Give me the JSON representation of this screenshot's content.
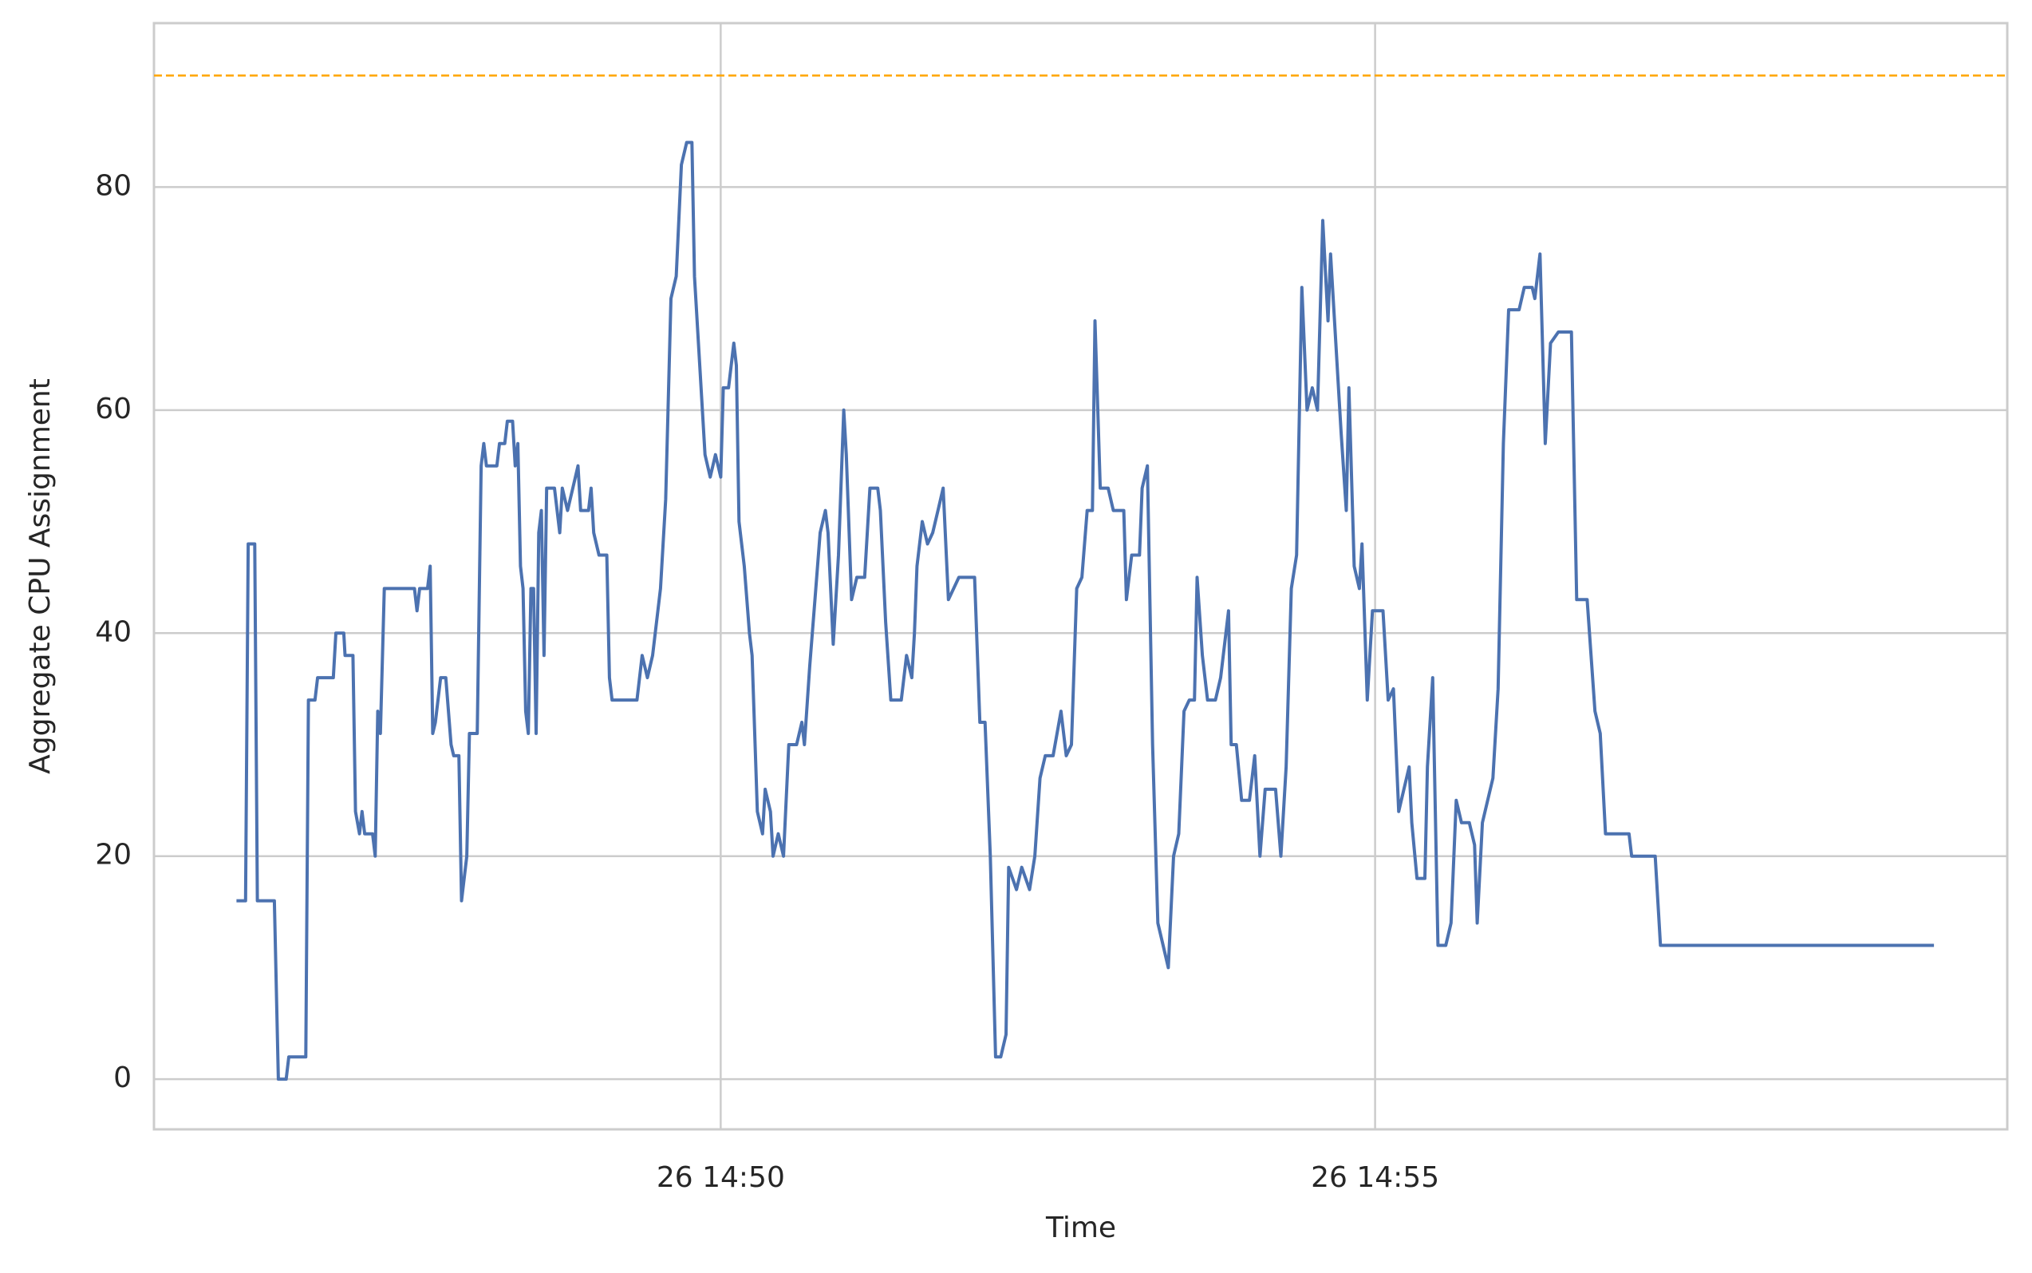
{
  "chart_data": {
    "type": "line",
    "xlabel": "Time",
    "ylabel": "Aggregate CPU Assignment",
    "x": [
      46.3,
      46.37,
      46.39,
      46.44,
      46.46,
      46.59,
      46.62,
      46.68,
      46.7,
      46.83,
      46.85,
      46.9,
      46.92,
      47.04,
      47.06,
      47.12,
      47.13,
      47.19,
      47.21,
      47.24,
      47.26,
      47.28,
      47.34,
      47.36,
      47.38,
      47.4,
      47.43,
      47.66,
      47.68,
      47.7,
      47.76,
      47.78,
      47.8,
      47.82,
      47.86,
      47.9,
      47.94,
      47.96,
      48.0,
      48.02,
      48.06,
      48.08,
      48.14,
      48.17,
      48.19,
      48.21,
      48.29,
      48.31,
      48.35,
      48.37,
      48.41,
      48.43,
      48.45,
      48.47,
      48.49,
      48.51,
      48.53,
      48.55,
      48.57,
      48.59,
      48.61,
      48.63,
      48.65,
      48.67,
      48.73,
      48.77,
      48.79,
      48.83,
      48.87,
      48.91,
      48.93,
      48.99,
      49.01,
      49.03,
      49.07,
      49.13,
      49.15,
      49.17,
      49.36,
      49.4,
      49.44,
      49.48,
      49.54,
      49.58,
      49.62,
      49.66,
      49.7,
      49.74,
      49.78,
      49.8,
      49.84,
      49.88,
      49.92,
      49.96,
      50.0,
      50.02,
      50.06,
      50.1,
      50.12,
      50.14,
      50.18,
      50.22,
      50.24,
      50.28,
      50.32,
      50.34,
      50.38,
      50.4,
      50.44,
      50.48,
      50.52,
      50.58,
      50.62,
      50.64,
      50.68,
      50.72,
      50.76,
      50.8,
      50.82,
      50.86,
      50.9,
      50.94,
      50.96,
      51.0,
      51.04,
      51.1,
      51.14,
      51.2,
      51.22,
      51.26,
      51.3,
      51.38,
      51.42,
      51.46,
      51.48,
      51.5,
      51.54,
      51.58,
      51.62,
      51.66,
      51.7,
      51.74,
      51.82,
      51.94,
      51.98,
      52.02,
      52.06,
      52.1,
      52.14,
      52.18,
      52.2,
      52.26,
      52.3,
      52.36,
      52.4,
      52.44,
      52.48,
      52.54,
      52.6,
      52.64,
      52.68,
      52.72,
      52.76,
      52.8,
      52.84,
      52.86,
      52.9,
      52.96,
      53.0,
      53.08,
      53.1,
      53.14,
      53.2,
      53.22,
      53.26,
      53.3,
      53.34,
      53.38,
      53.42,
      53.46,
      53.5,
      53.54,
      53.58,
      53.62,
      53.64,
      53.68,
      53.72,
      53.78,
      53.82,
      53.88,
      53.9,
      53.94,
      53.98,
      54.04,
      54.08,
      54.12,
      54.16,
      54.24,
      54.28,
      54.32,
      54.36,
      54.4,
      54.44,
      54.48,
      54.52,
      54.56,
      54.6,
      54.64,
      54.66,
      54.7,
      54.74,
      54.78,
      54.8,
      54.84,
      54.88,
      54.9,
      54.94,
      54.98,
      55.06,
      55.1,
      55.14,
      55.18,
      55.22,
      55.26,
      55.28,
      55.32,
      55.38,
      55.4,
      55.44,
      55.48,
      55.54,
      55.58,
      55.62,
      55.66,
      55.72,
      55.76,
      55.78,
      55.82,
      55.86,
      55.9,
      55.94,
      55.98,
      56.02,
      56.1,
      56.14,
      56.2,
      56.22,
      56.26,
      56.3,
      56.34,
      56.4,
      56.5,
      56.54,
      56.62,
      56.68,
      56.72,
      56.76,
      56.94,
      56.96,
      57.14,
      57.18,
      59.27
    ],
    "values": [
      16,
      16,
      48,
      48,
      16,
      16,
      0,
      0,
      2,
      2,
      34,
      34,
      36,
      36,
      40,
      40,
      38,
      38,
      24,
      22,
      24,
      22,
      22,
      20,
      33,
      31,
      44,
      44,
      42,
      44,
      44,
      46,
      31,
      32,
      36,
      36,
      30,
      29,
      29,
      16,
      20,
      31,
      31,
      55,
      57,
      55,
      55,
      57,
      57,
      59,
      59,
      55,
      57,
      46,
      44,
      33,
      31,
      44,
      44,
      31,
      49,
      51,
      38,
      53,
      53,
      49,
      53,
      51,
      53,
      55,
      51,
      51,
      53,
      49,
      47,
      47,
      36,
      34,
      34,
      38,
      36,
      38,
      44,
      52,
      70,
      72,
      82,
      84,
      84,
      72,
      64,
      56,
      54,
      56,
      54,
      62,
      62,
      66,
      64,
      50,
      46,
      40,
      38,
      24,
      22,
      26,
      24,
      20,
      22,
      20,
      30,
      30,
      32,
      30,
      37,
      43,
      49,
      51,
      49,
      39,
      47,
      60,
      56,
      43,
      45,
      45,
      53,
      53,
      51,
      41,
      34,
      34,
      38,
      36,
      40,
      46,
      50,
      48,
      49,
      51,
      53,
      43,
      45,
      45,
      32,
      32,
      20,
      2,
      2,
      4,
      19,
      17,
      19,
      17,
      20,
      27,
      29,
      29,
      33,
      29,
      30,
      44,
      45,
      51,
      51,
      68,
      53,
      53,
      51,
      51,
      43,
      47,
      47,
      53,
      55,
      30,
      14,
      12,
      10,
      20,
      22,
      33,
      34,
      34,
      45,
      38,
      34,
      34,
      36,
      42,
      30,
      30,
      25,
      25,
      29,
      20,
      26,
      26,
      20,
      28,
      44,
      47,
      71,
      60,
      62,
      60,
      77,
      68,
      74,
      66,
      58,
      51,
      62,
      46,
      44,
      48,
      34,
      42,
      42,
      34,
      35,
      24,
      26,
      28,
      23,
      18,
      18,
      28,
      36,
      12,
      12,
      14,
      25,
      23,
      23,
      21,
      14,
      23,
      25,
      27,
      35,
      57,
      69,
      69,
      71,
      71,
      70,
      74,
      57,
      66,
      67,
      67,
      43,
      43,
      33,
      31,
      22,
      22,
      20,
      20,
      12,
      12
    ],
    "color": "#4c72b0",
    "xlim": [
      45.67,
      59.83
    ],
    "xticks": [
      {
        "value": 50,
        "label": "26 14:50"
      },
      {
        "value": 55,
        "label": "26 14:55"
      }
    ],
    "ylim": [
      -4.5,
      94.7
    ],
    "yticks": [
      0,
      20,
      40,
      60,
      80
    ],
    "hline": {
      "value": 90,
      "color": "#ffa500"
    },
    "grid": true
  }
}
